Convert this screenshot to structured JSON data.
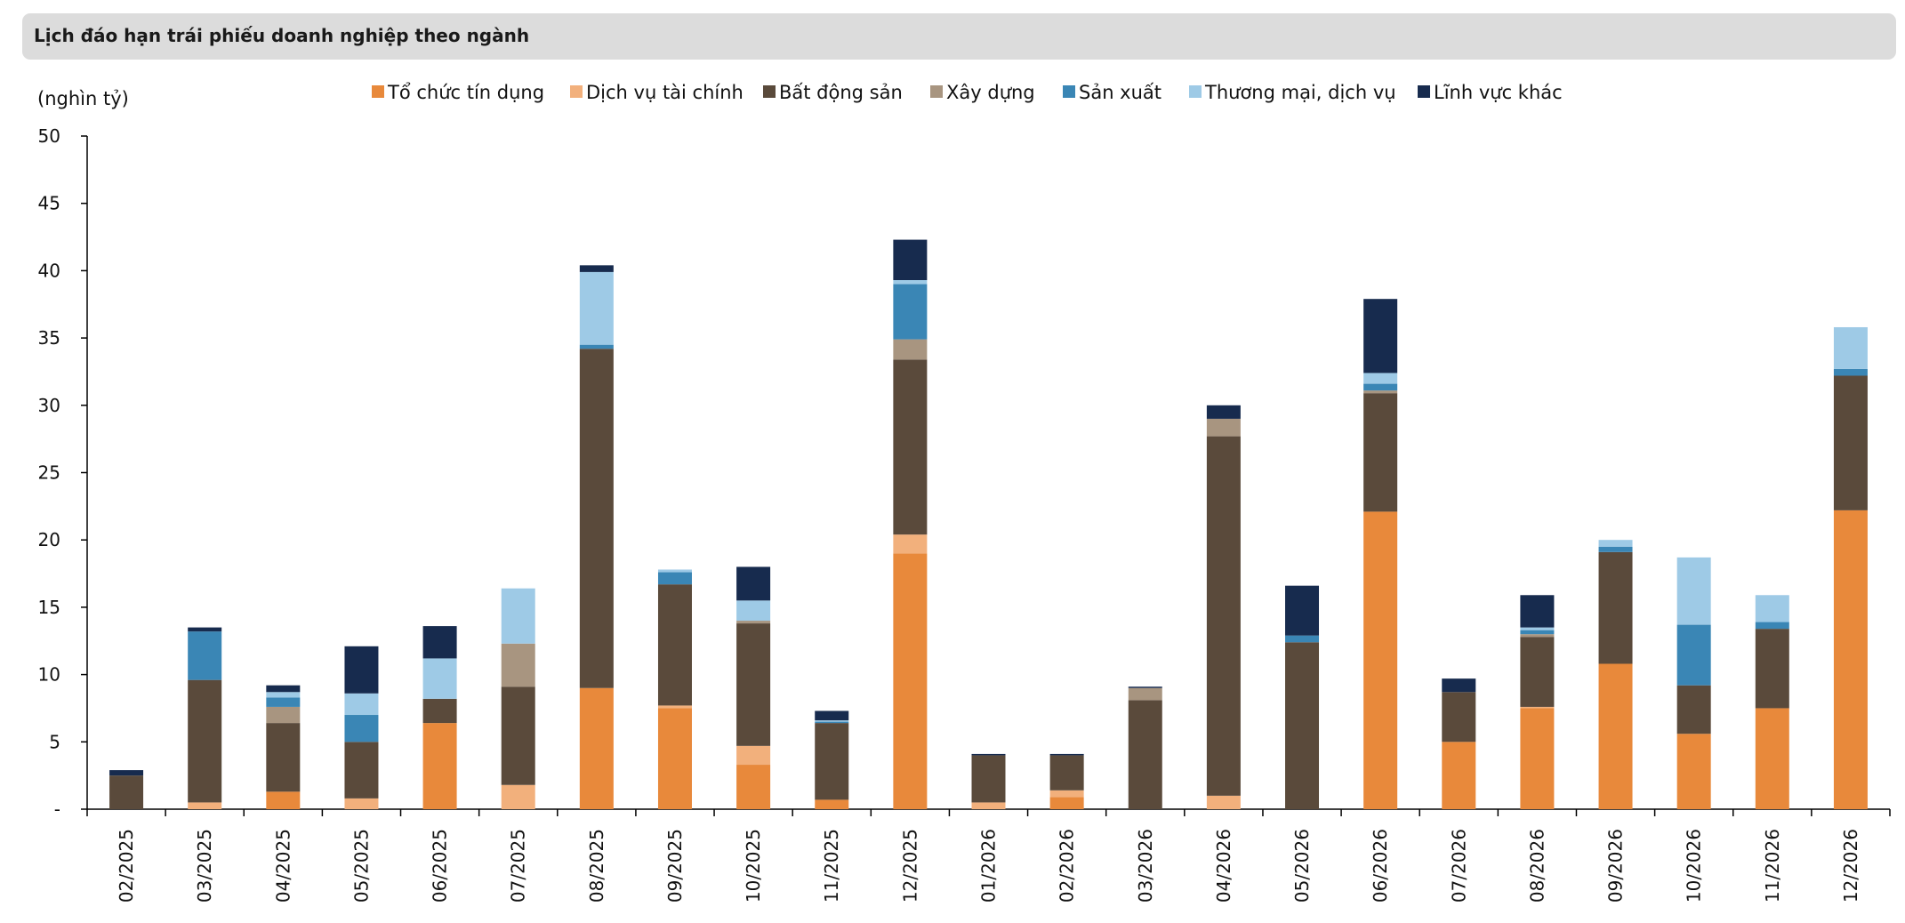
{
  "header": {
    "title": "Lịch đáo hạn trái phiếu doanh nghiệp theo ngành"
  },
  "chart_data": {
    "type": "bar",
    "stacked": true,
    "title": "Lịch đáo hạn trái phiếu doanh nghiệp theo ngành",
    "ylabel": "(nghìn tỷ)",
    "xlabel": "",
    "ylim": [
      0,
      50
    ],
    "yticks": [
      0,
      5,
      10,
      15,
      20,
      25,
      30,
      35,
      40,
      45,
      50
    ],
    "ytick_labels": [
      "-",
      "5",
      "10",
      "15",
      "20",
      "25",
      "30",
      "35",
      "40",
      "45",
      "50"
    ],
    "grid": false,
    "legend_position": "top",
    "categories": [
      "02/2025",
      "03/2025",
      "04/2025",
      "05/2025",
      "06/2025",
      "07/2025",
      "08/2025",
      "09/2025",
      "10/2025",
      "11/2025",
      "12/2025",
      "01/2026",
      "02/2026",
      "03/2026",
      "04/2026",
      "05/2026",
      "06/2026",
      "07/2026",
      "08/2026",
      "09/2026",
      "10/2026",
      "11/2026",
      "12/2026"
    ],
    "series": [
      {
        "name": "Tổ chức tín dụng",
        "color": "#e8893b",
        "values": [
          0,
          0,
          1.3,
          0,
          6.4,
          0,
          9.0,
          7.5,
          3.3,
          0.7,
          19.0,
          0,
          0.9,
          0,
          0,
          0,
          22.1,
          5.0,
          7.5,
          10.8,
          5.6,
          7.5,
          22.2
        ]
      },
      {
        "name": "Dịch vụ tài chính",
        "color": "#f2b07c",
        "values": [
          0,
          0.5,
          0,
          0.8,
          0,
          1.8,
          0,
          0.2,
          1.4,
          0,
          1.4,
          0.5,
          0.5,
          0,
          1.0,
          0,
          0,
          0,
          0.1,
          0,
          0,
          0,
          0
        ]
      },
      {
        "name": "Bất động sản",
        "color": "#5a4a3b",
        "values": [
          2.5,
          9.1,
          5.1,
          4.2,
          1.8,
          7.3,
          25.2,
          9.0,
          9.1,
          5.7,
          13.0,
          3.5,
          2.6,
          8.1,
          26.7,
          12.4,
          8.8,
          3.7,
          5.2,
          8.3,
          3.6,
          5.9,
          10.0
        ]
      },
      {
        "name": "Xây dựng",
        "color": "#a89580",
        "values": [
          0,
          0,
          1.2,
          0,
          0,
          3.2,
          0,
          0,
          0.2,
          0,
          1.5,
          0,
          0,
          0.9,
          1.3,
          0,
          0.2,
          0,
          0.2,
          0,
          0,
          0,
          0
        ]
      },
      {
        "name": "Sản xuất",
        "color": "#3a86b5",
        "values": [
          0,
          3.6,
          0.7,
          2.0,
          0,
          0,
          0.3,
          0.9,
          0,
          0.1,
          4.1,
          0,
          0,
          0,
          0,
          0.5,
          0.5,
          0,
          0.3,
          0.4,
          4.5,
          0.5,
          0.5
        ]
      },
      {
        "name": "Thương mại, dịch vụ",
        "color": "#9ecae6",
        "values": [
          0,
          0,
          0.4,
          1.6,
          3.0,
          4.1,
          5.4,
          0.2,
          1.5,
          0.1,
          0.3,
          0,
          0,
          0,
          0,
          0,
          0.8,
          0,
          0.2,
          0.5,
          5.0,
          2.0,
          3.1
        ]
      },
      {
        "name": "Lĩnh vực khác",
        "color": "#172b4e",
        "values": [
          0.4,
          0.3,
          0.5,
          3.5,
          2.4,
          0,
          0.5,
          0,
          2.5,
          0.7,
          3.0,
          0.1,
          0.1,
          0.1,
          1.0,
          3.7,
          5.5,
          1.0,
          2.4,
          0,
          0,
          0,
          0
        ]
      }
    ]
  }
}
